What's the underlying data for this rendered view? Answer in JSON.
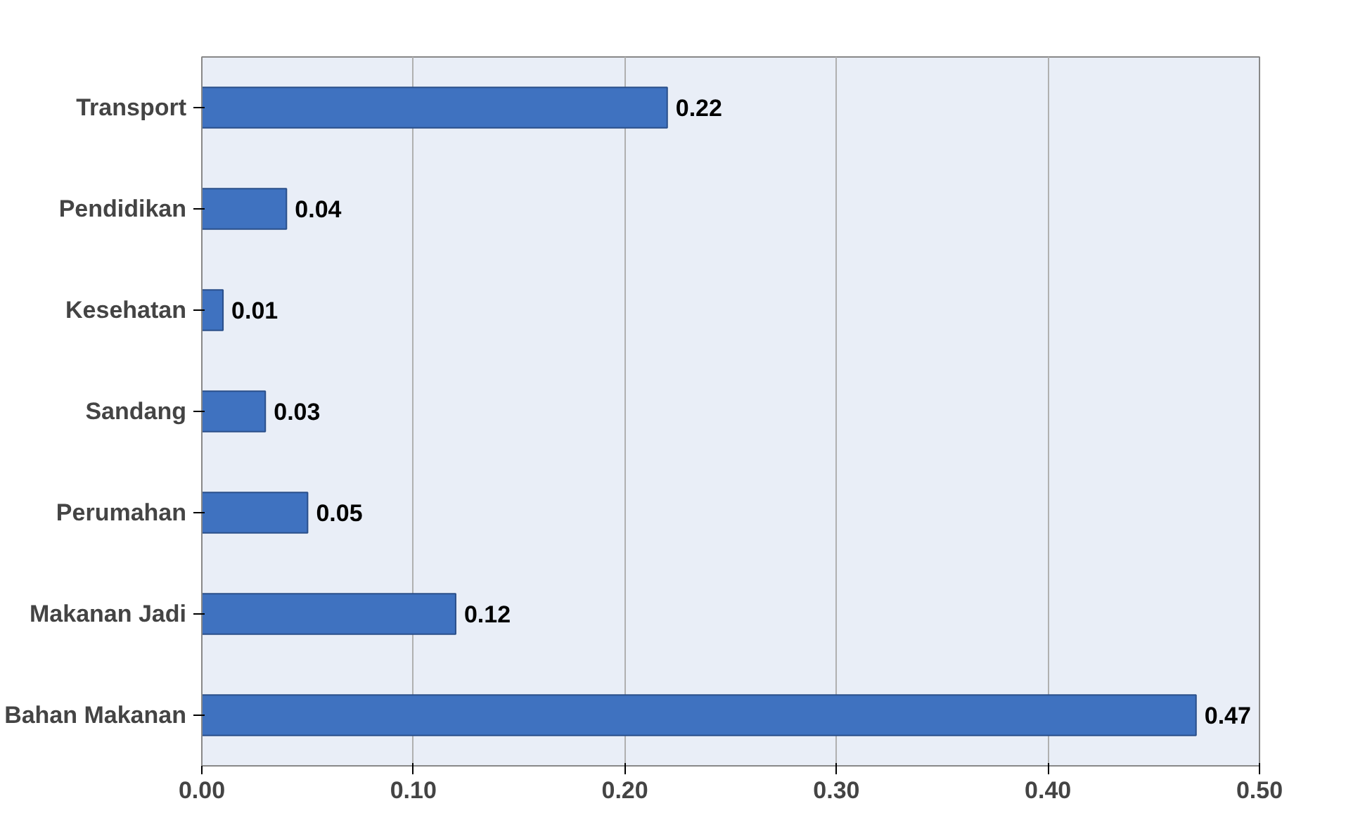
{
  "chart_data": {
    "type": "bar",
    "orientation": "horizontal",
    "categories": [
      "Transport",
      "Pendidikan",
      "Kesehatan",
      "Sandang",
      "Perumahan",
      "Makanan Jadi",
      "Bahan Makanan"
    ],
    "values": [
      0.22,
      0.04,
      0.01,
      0.03,
      0.05,
      0.12,
      0.47
    ],
    "color": "#3f72c0",
    "xlim": [
      0,
      0.5
    ],
    "xticks": [
      {
        "value": 0,
        "label": "0.00"
      },
      {
        "value": 0.1,
        "label": "0.10"
      },
      {
        "value": 0.2,
        "label": "0.20"
      },
      {
        "value": 0.3,
        "label": "0.30"
      },
      {
        "value": 0.4,
        "label": "0.40"
      },
      {
        "value": 0.5,
        "label": "0.50"
      }
    ],
    "grid": "x",
    "data_labels": true
  }
}
